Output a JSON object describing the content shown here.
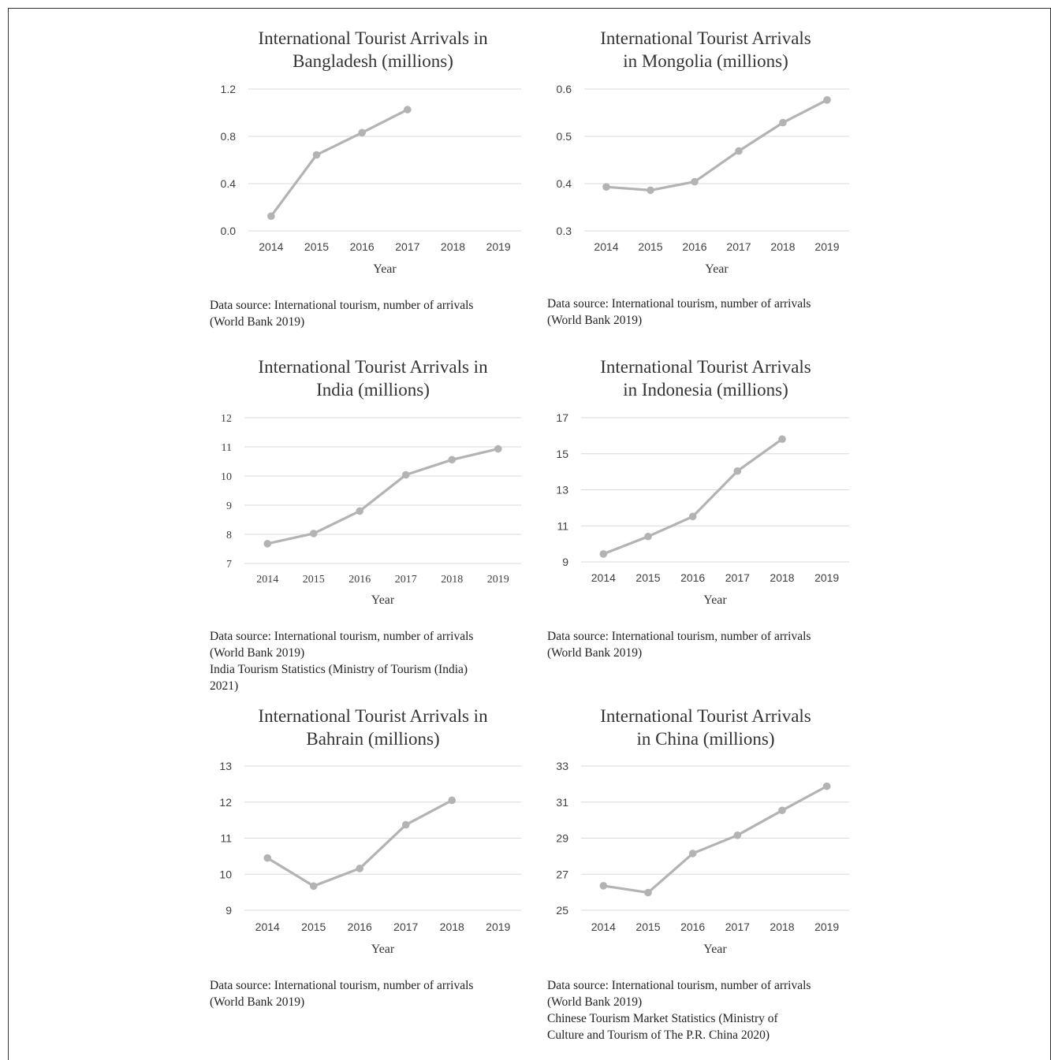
{
  "chart_data": [
    {
      "type": "line",
      "title_lines": [
        "International Tourist Arrivals in",
        "Bangladesh (millions)"
      ],
      "xlabel": "Year",
      "categories": [
        "2014",
        "2015",
        "2016",
        "2017",
        "2018",
        "2019"
      ],
      "y_ticks": [
        "0.0",
        "0.4",
        "0.8",
        "1.2"
      ],
      "ylim": [
        0,
        1.2
      ],
      "values": [
        0.125,
        0.643,
        0.831,
        1.026,
        null,
        null
      ],
      "tick_font": "sans",
      "grid": true,
      "line_color": "#b3b3b3",
      "caption_lines": [
        "Data source: International tourism, number of arrivals",
        "(World Bank 2019)"
      ]
    },
    {
      "type": "line",
      "title_lines": [
        "International Tourist Arrivals",
        "in Mongolia (millions)"
      ],
      "xlabel": "Year",
      "categories": [
        "2014",
        "2015",
        "2016",
        "2017",
        "2018",
        "2019"
      ],
      "y_ticks": [
        "0.3",
        "0.4",
        "0.5",
        "0.6"
      ],
      "ylim": [
        0.3,
        0.6
      ],
      "values": [
        0.393,
        0.386,
        0.404,
        0.469,
        0.529,
        0.577
      ],
      "tick_font": "sans",
      "grid": true,
      "line_color": "#b3b3b3",
      "caption_lines": [
        "Data source: International tourism, number of arrivals",
        "(World Bank 2019)"
      ]
    },
    {
      "type": "line",
      "title_lines": [
        "International Tourist Arrivals in",
        "India (millions)"
      ],
      "xlabel": "Year",
      "categories": [
        "2014",
        "2015",
        "2016",
        "2017",
        "2018",
        "2019"
      ],
      "y_ticks": [
        "7",
        "8",
        "9",
        "10",
        "11",
        "12"
      ],
      "ylim": [
        7,
        12
      ],
      "values": [
        7.68,
        8.03,
        8.8,
        10.04,
        10.56,
        10.93
      ],
      "tick_font": "serif",
      "grid": true,
      "line_color": "#b3b3b3",
      "caption_lines": [
        "Data source: International tourism, number of arrivals",
        "(World Bank 2019)",
        "India Tourism Statistics (Ministry of Tourism (India)",
        "2021)"
      ]
    },
    {
      "type": "line",
      "title_lines": [
        "International Tourist Arrivals",
        "in Indonesia (millions)"
      ],
      "xlabel": "Year",
      "categories": [
        "2014",
        "2015",
        "2016",
        "2017",
        "2018",
        "2019"
      ],
      "y_ticks": [
        "9",
        "11",
        "13",
        "15",
        "17"
      ],
      "ylim": [
        9,
        17
      ],
      "values": [
        9.44,
        10.41,
        11.52,
        14.04,
        15.81,
        null
      ],
      "tick_font": "sans",
      "grid": true,
      "line_color": "#b3b3b3",
      "caption_lines": [
        "Data source: International tourism, number of arrivals",
        "(World Bank 2019)"
      ]
    },
    {
      "type": "line",
      "title_lines": [
        "International Tourist Arrivals in",
        "Bahrain (millions)"
      ],
      "xlabel": "Year",
      "categories": [
        "2014",
        "2015",
        "2016",
        "2017",
        "2018",
        "2019"
      ],
      "y_ticks": [
        "9",
        "10",
        "11",
        "12",
        "13"
      ],
      "ylim": [
        9,
        13
      ],
      "values": [
        10.45,
        9.67,
        10.16,
        11.37,
        12.05,
        null
      ],
      "tick_font": "sans",
      "grid": true,
      "line_color": "#b3b3b3",
      "caption_lines": [
        "Data source: International tourism, number of arrivals",
        "(World Bank 2019)"
      ]
    },
    {
      "type": "line",
      "title_lines": [
        "International Tourist Arrivals",
        "in China (millions)"
      ],
      "xlabel": "Year",
      "categories": [
        "2014",
        "2015",
        "2016",
        "2017",
        "2018",
        "2019"
      ],
      "y_ticks": [
        "25",
        "27",
        "29",
        "31",
        "33"
      ],
      "ylim": [
        25,
        33
      ],
      "values": [
        26.36,
        25.98,
        28.15,
        29.16,
        30.54,
        31.88
      ],
      "tick_font": "sans",
      "grid": true,
      "line_color": "#b3b3b3",
      "caption_lines": [
        "Data source: International tourism, number of arrivals",
        "(World Bank 2019)",
        "Chinese Tourism Market Statistics (Ministry of",
        "Culture and Tourism of The P.R. China 2020)"
      ]
    }
  ]
}
